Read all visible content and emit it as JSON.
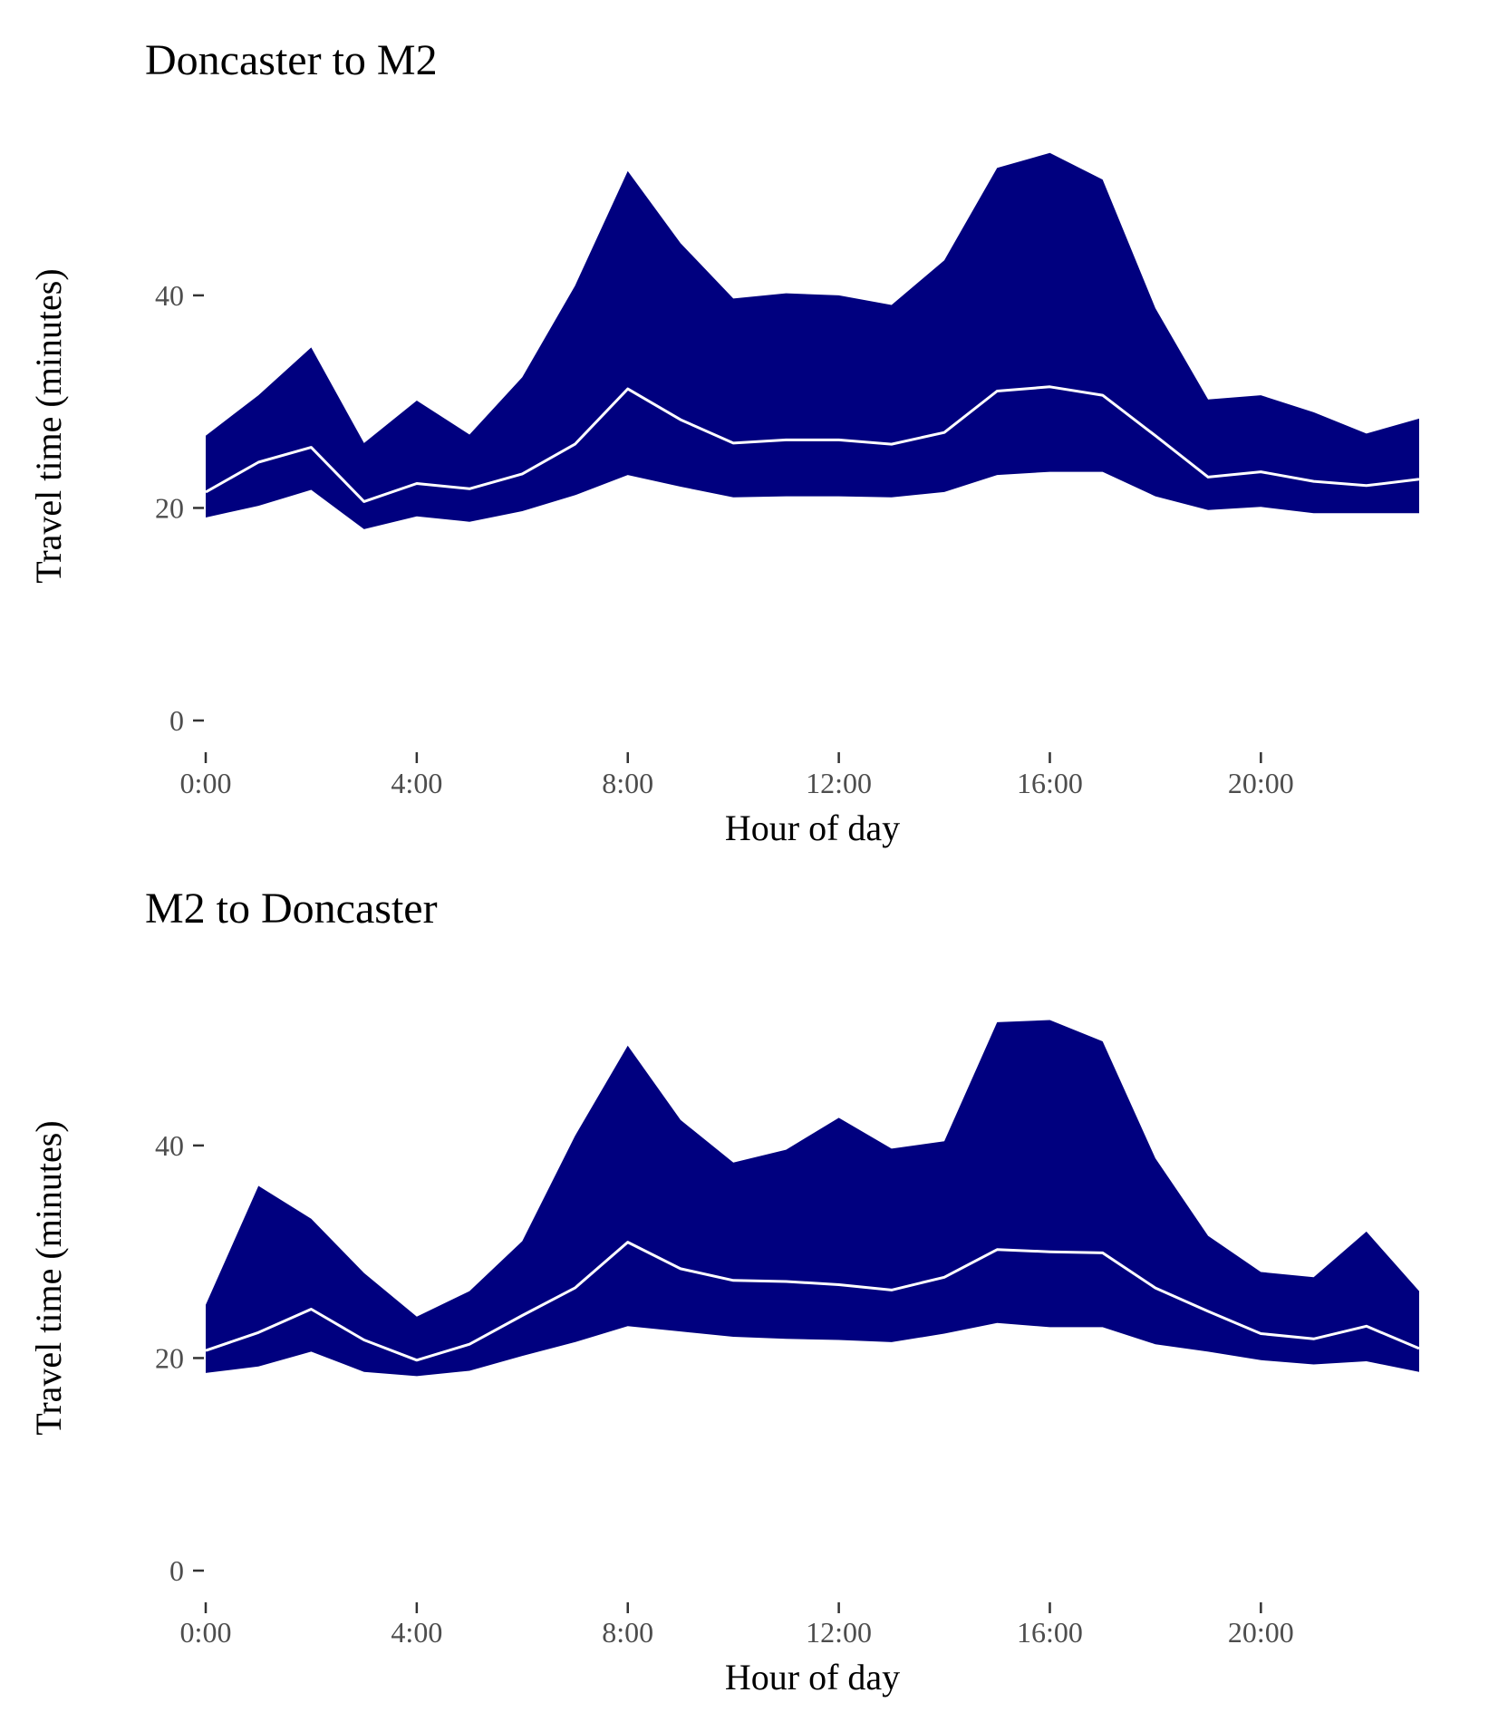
{
  "colors": {
    "band_fill": "#00007f",
    "median_line": "#ffffff",
    "tick_label": "#4d4d4d",
    "tick_mark": "#333333"
  },
  "chart_data": [
    {
      "type": "area",
      "title": "Doncaster to M2",
      "xlabel": "Hour of day",
      "ylabel": "Travel time (minutes)",
      "x": [
        0,
        1,
        2,
        3,
        4,
        5,
        6,
        7,
        8,
        9,
        10,
        11,
        12,
        13,
        14,
        15,
        16,
        17,
        18,
        19,
        20,
        21,
        22,
        23
      ],
      "xlim": [
        0,
        23
      ],
      "ylim": [
        0,
        55
      ],
      "x_ticks": [
        0,
        4,
        8,
        12,
        16,
        20
      ],
      "x_tick_labels": [
        "0:00",
        "4:00",
        "8:00",
        "12:00",
        "16:00",
        "20:00"
      ],
      "y_ticks": [
        0,
        20,
        40
      ],
      "y_tick_labels": [
        "0",
        "20",
        "40"
      ],
      "grid": false,
      "legend": "none",
      "series": [
        {
          "role": "lower",
          "values": [
            19.1,
            20.2,
            21.7,
            18.0,
            19.2,
            18.7,
            19.7,
            21.2,
            23.1,
            22.0,
            21.0,
            21.1,
            21.1,
            21.0,
            21.5,
            23.1,
            23.4,
            23.4,
            21.1,
            19.8,
            20.1,
            19.5,
            19.5,
            19.5
          ]
        },
        {
          "role": "median",
          "values": [
            21.5,
            24.3,
            25.7,
            20.6,
            22.3,
            21.8,
            23.2,
            26.0,
            31.2,
            28.3,
            26.1,
            26.4,
            26.4,
            26.0,
            27.1,
            31.0,
            31.4,
            30.6,
            26.8,
            22.9,
            23.4,
            22.5,
            22.1,
            22.7
          ]
        },
        {
          "role": "upper",
          "values": [
            26.8,
            30.6,
            35.1,
            26.1,
            30.1,
            26.9,
            32.3,
            40.9,
            51.7,
            44.9,
            39.7,
            40.2,
            40.0,
            39.1,
            43.3,
            52.0,
            53.4,
            50.9,
            38.8,
            30.2,
            30.6,
            29.0,
            27.0,
            28.4
          ]
        }
      ]
    },
    {
      "type": "area",
      "title": "M2 to Doncaster",
      "xlabel": "Hour of day",
      "ylabel": "Travel time (minutes)",
      "x": [
        0,
        1,
        2,
        3,
        4,
        5,
        6,
        7,
        8,
        9,
        10,
        11,
        12,
        13,
        14,
        15,
        16,
        17,
        18,
        19,
        20,
        21,
        22,
        23
      ],
      "xlim": [
        0,
        23
      ],
      "ylim": [
        0,
        55
      ],
      "x_ticks": [
        0,
        4,
        8,
        12,
        16,
        20
      ],
      "x_tick_labels": [
        "0:00",
        "4:00",
        "8:00",
        "12:00",
        "16:00",
        "20:00"
      ],
      "y_ticks": [
        0,
        20,
        40
      ],
      "y_tick_labels": [
        "0",
        "20",
        "40"
      ],
      "grid": false,
      "legend": "none",
      "series": [
        {
          "role": "lower",
          "values": [
            18.6,
            19.2,
            20.6,
            18.7,
            18.3,
            18.8,
            20.2,
            21.5,
            23.0,
            22.5,
            22.0,
            21.8,
            21.7,
            21.5,
            22.3,
            23.3,
            22.9,
            22.9,
            21.3,
            20.6,
            19.8,
            19.4,
            19.7,
            18.7
          ]
        },
        {
          "role": "median",
          "values": [
            20.7,
            22.4,
            24.6,
            21.7,
            19.8,
            21.3,
            24.0,
            26.6,
            30.9,
            28.4,
            27.3,
            27.2,
            26.9,
            26.4,
            27.6,
            30.2,
            30.0,
            29.9,
            26.6,
            24.4,
            22.3,
            21.8,
            23.0,
            20.9
          ]
        },
        {
          "role": "upper",
          "values": [
            25.0,
            36.2,
            33.1,
            28.0,
            23.9,
            26.3,
            31.0,
            40.9,
            49.4,
            42.4,
            38.4,
            39.6,
            42.6,
            39.7,
            40.4,
            51.6,
            51.8,
            49.8,
            38.8,
            31.5,
            28.1,
            27.6,
            31.9,
            26.3
          ]
        }
      ]
    }
  ]
}
